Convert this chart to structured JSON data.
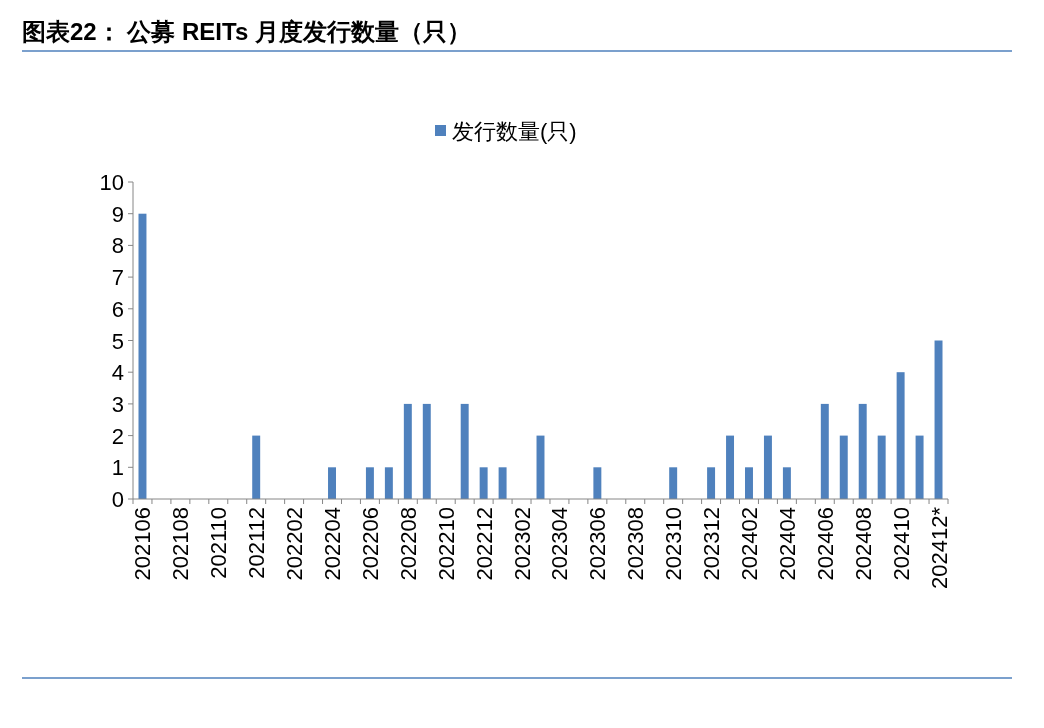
{
  "chart_data": {
    "type": "bar",
    "title": "图表22： 公募 REITs 月度发行数量（只）",
    "categories": [
      "202106",
      null,
      "202108",
      null,
      "202110",
      null,
      "202112",
      null,
      "202202",
      null,
      "202204",
      null,
      "202206",
      null,
      "202208",
      null,
      "202210",
      null,
      "202212",
      null,
      "202302",
      null,
      "202304",
      null,
      "202306",
      null,
      "202308",
      null,
      "202310",
      null,
      "202312",
      null,
      "202402",
      null,
      "202404",
      null,
      "202406",
      null,
      "202408",
      null,
      "202410",
      null,
      "202412*"
    ],
    "series": [
      {
        "name": "发行数量(只)",
        "color": "#4f81bd",
        "values": [
          9,
          0,
          0,
          0,
          0,
          0,
          2,
          0,
          0,
          0,
          1,
          0,
          1,
          1,
          3,
          3,
          0,
          3,
          1,
          1,
          0,
          2,
          0,
          0,
          1,
          0,
          0,
          0,
          1,
          0,
          1,
          2,
          1,
          2,
          1,
          0,
          3,
          2,
          3,
          2,
          4,
          2,
          5
        ]
      }
    ],
    "ylim": [
      0,
      10
    ],
    "yticks": [
      0,
      1,
      2,
      3,
      4,
      5,
      6,
      7,
      8,
      9,
      10
    ],
    "grid": false,
    "legend": "top"
  }
}
